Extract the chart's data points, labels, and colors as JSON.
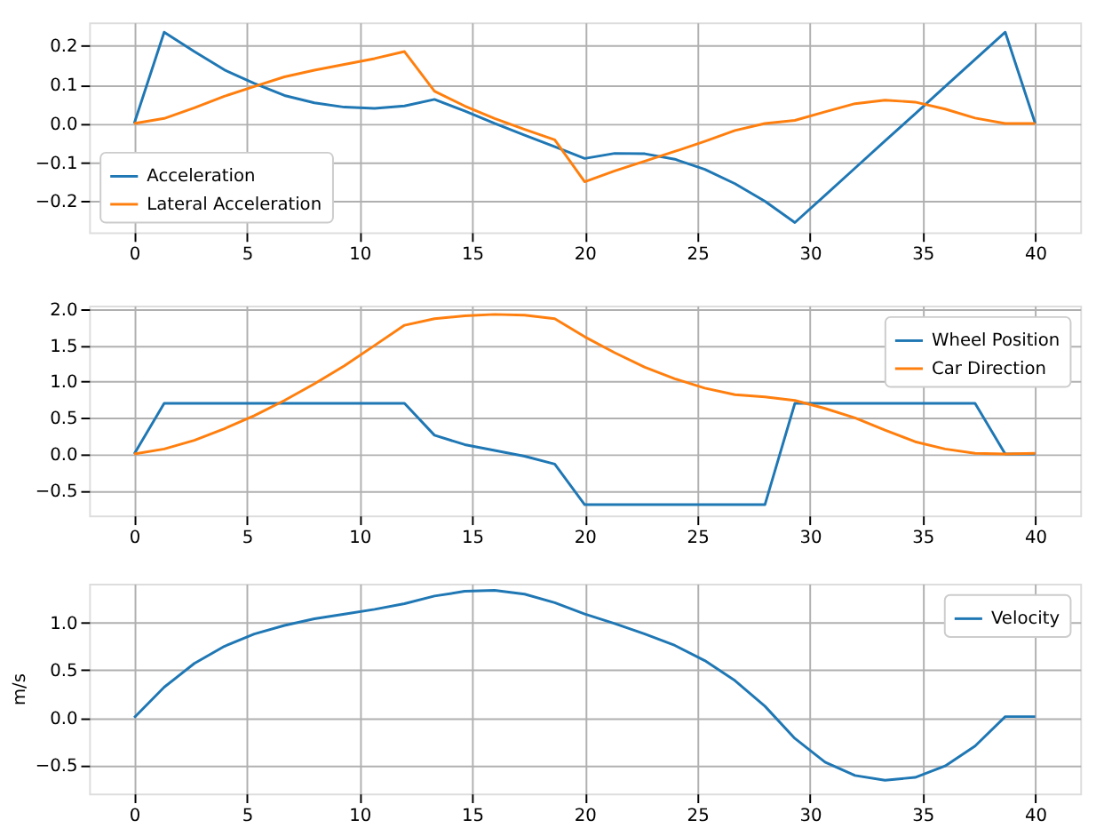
{
  "chart_data": [
    {
      "type": "line",
      "x": [
        0,
        1.33,
        2.67,
        4,
        5.33,
        6.67,
        8,
        9.33,
        10.67,
        12,
        13.33,
        14.67,
        16,
        17.33,
        18.67,
        20,
        21.33,
        22.67,
        24,
        25.33,
        26.67,
        28,
        29.33,
        30.67,
        32,
        33.33,
        34.67,
        36,
        37.33,
        38.67,
        40
      ],
      "series": [
        {
          "name": "Acceleration",
          "color": "#1f77b4",
          "values": [
            0,
            0.235,
            0.185,
            0.138,
            0.103,
            0.072,
            0.053,
            0.042,
            0.039,
            0.045,
            0.062,
            0.032,
            0.0,
            -0.03,
            -0.06,
            -0.09,
            -0.077,
            -0.078,
            -0.092,
            -0.118,
            -0.155,
            -0.2,
            -0.255,
            -0.185,
            -0.115,
            -0.045,
            0.025,
            0.095,
            0.165,
            0.235,
            0.0
          ]
        },
        {
          "name": "Lateral Acceleration",
          "color": "#ff7f0e",
          "values": [
            0,
            0.013,
            0.04,
            0.07,
            0.095,
            0.12,
            0.137,
            0.152,
            0.167,
            0.185,
            0.083,
            0.045,
            0.013,
            -0.015,
            -0.042,
            -0.15,
            -0.122,
            -0.097,
            -0.072,
            -0.046,
            -0.018,
            0.0,
            0.008,
            0.03,
            0.051,
            0.06,
            0.055,
            0.037,
            0.014,
            0.0,
            0.0
          ]
        }
      ],
      "xlim": [
        -2,
        42
      ],
      "xticks": [
        0,
        5,
        10,
        15,
        20,
        25,
        30,
        35,
        40
      ],
      "ylim": [
        -0.28,
        0.26
      ],
      "yticks": [
        {
          "value": -0.2,
          "label": "−0.2"
        },
        {
          "value": -0.1,
          "label": "−0.1"
        },
        {
          "value": 0,
          "label": "0.0"
        },
        {
          "value": 0.1,
          "label": "0.1"
        },
        {
          "value": 0.2,
          "label": "0.2"
        }
      ],
      "grid": true,
      "legend": "bottom left"
    },
    {
      "type": "line",
      "x": [
        0,
        1.33,
        2.67,
        4,
        5.33,
        6.67,
        8,
        9.33,
        10.67,
        12,
        13.33,
        14.67,
        16,
        17.33,
        18.67,
        20,
        21.33,
        22.67,
        24,
        25.33,
        26.67,
        28,
        29.33,
        30.67,
        32,
        33.33,
        34.67,
        36,
        37.33,
        38.67,
        40
      ],
      "series": [
        {
          "name": "Wheel Position",
          "color": "#1f77b4",
          "values": [
            0,
            0.7,
            0.7,
            0.7,
            0.7,
            0.7,
            0.7,
            0.7,
            0.7,
            0.7,
            0.26,
            0.13,
            0.05,
            -0.03,
            -0.14,
            -0.7,
            -0.7,
            -0.7,
            -0.7,
            -0.7,
            -0.7,
            -0.7,
            0.7,
            0.7,
            0.7,
            0.7,
            0.7,
            0.7,
            0.7,
            0,
            0
          ]
        },
        {
          "name": "Car Direction",
          "color": "#ff7f0e",
          "values": [
            0,
            0.07,
            0.19,
            0.35,
            0.53,
            0.74,
            0.97,
            1.22,
            1.5,
            1.78,
            1.87,
            1.91,
            1.93,
            1.92,
            1.87,
            1.62,
            1.4,
            1.2,
            1.04,
            0.91,
            0.82,
            0.79,
            0.74,
            0.63,
            0.5,
            0.33,
            0.17,
            0.07,
            0.01,
            0.0,
            0.01
          ]
        }
      ],
      "xlim": [
        -2,
        42
      ],
      "xticks": [
        0,
        5,
        10,
        15,
        20,
        25,
        30,
        35,
        40
      ],
      "ylim": [
        -0.85,
        2.05
      ],
      "yticks": [
        {
          "value": -0.5,
          "label": "−0.5"
        },
        {
          "value": 0,
          "label": "0.0"
        },
        {
          "value": 0.5,
          "label": "0.5"
        },
        {
          "value": 1,
          "label": "1.0"
        },
        {
          "value": 1.5,
          "label": "1.5"
        },
        {
          "value": 2,
          "label": "2.0"
        }
      ],
      "grid": true,
      "legend": "top right"
    },
    {
      "type": "line",
      "ylabel": "m/s",
      "x": [
        0,
        1.33,
        2.67,
        4,
        5.33,
        6.67,
        8,
        9.33,
        10.67,
        12,
        13.33,
        14.67,
        16,
        17.33,
        18.67,
        20,
        21.33,
        22.67,
        24,
        25.33,
        26.67,
        28,
        29.33,
        30.67,
        32,
        33.33,
        34.67,
        36,
        37.33,
        38.67,
        40
      ],
      "series": [
        {
          "name": "Velocity",
          "color": "#1f77b4",
          "values": [
            0,
            0.32,
            0.57,
            0.75,
            0.88,
            0.97,
            1.04,
            1.09,
            1.14,
            1.2,
            1.28,
            1.33,
            1.34,
            1.3,
            1.21,
            1.09,
            0.99,
            0.88,
            0.76,
            0.6,
            0.39,
            0.12,
            -0.22,
            -0.47,
            -0.61,
            -0.66,
            -0.63,
            -0.51,
            -0.3,
            0.01,
            0.01
          ]
        }
      ],
      "xlim": [
        -2,
        42
      ],
      "xticks": [
        0,
        5,
        10,
        15,
        20,
        25,
        30,
        35,
        40
      ],
      "ylim": [
        -0.8,
        1.41
      ],
      "yticks": [
        {
          "value": -0.5,
          "label": "−0.5"
        },
        {
          "value": 0,
          "label": "0.0"
        },
        {
          "value": 0.5,
          "label": "0.5"
        },
        {
          "value": 1,
          "label": "1.0"
        }
      ],
      "grid": true,
      "legend": "top right"
    }
  ]
}
